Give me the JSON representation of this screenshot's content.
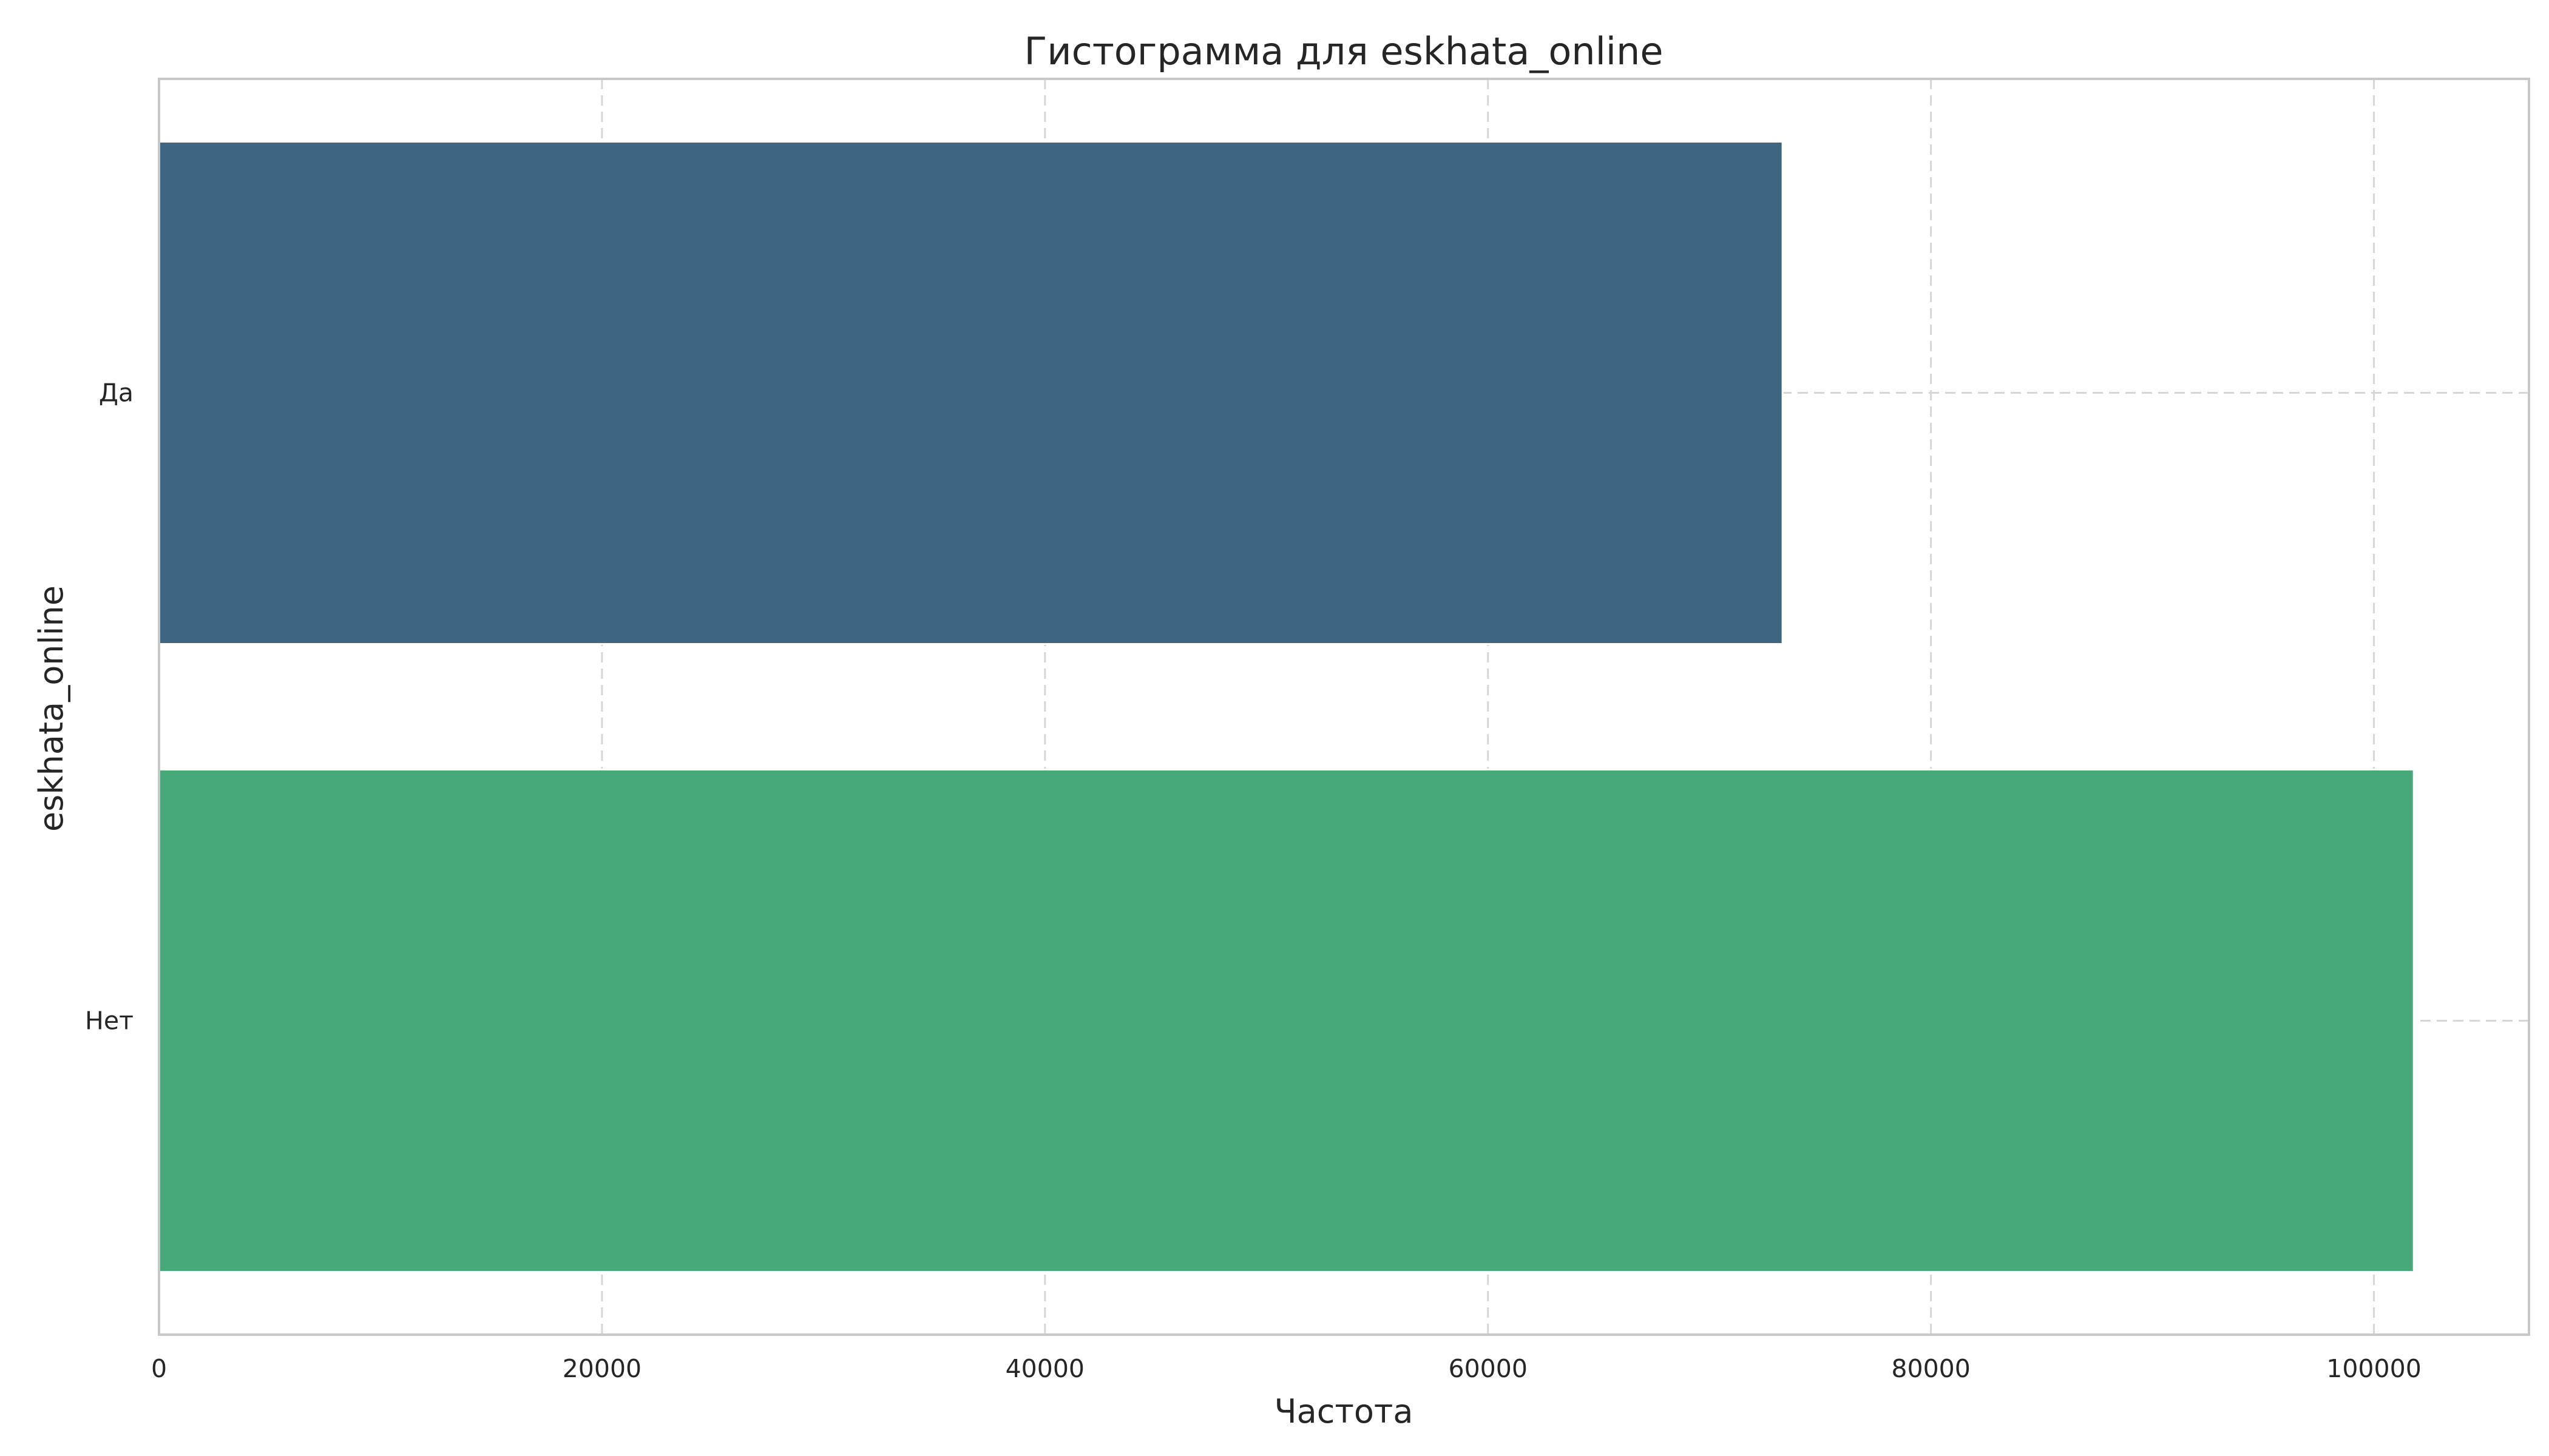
{
  "chart_data": {
    "type": "bar",
    "orientation": "horizontal",
    "title": "Гистограмма для eskhata_online",
    "xlabel": "Частота",
    "ylabel": "eskhata_online",
    "categories": [
      "Да",
      "Нет"
    ],
    "values": [
      73300,
      101800
    ],
    "colors": [
      "#3e6682",
      "#47a879"
    ],
    "xlim": [
      0,
      107000
    ],
    "xticks": [
      0,
      20000,
      40000,
      60000,
      80000,
      100000
    ],
    "grid": true
  }
}
